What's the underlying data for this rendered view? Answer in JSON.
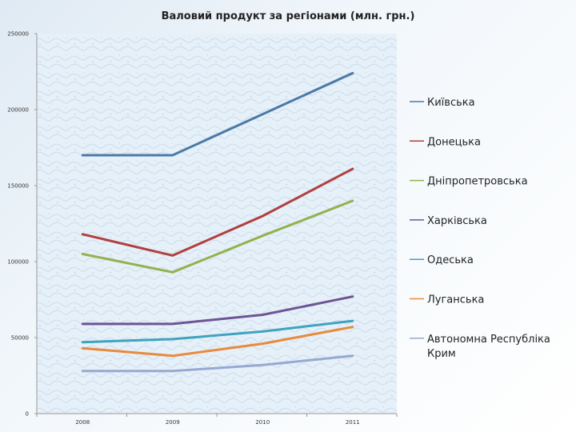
{
  "chart_data": {
    "type": "line",
    "title": "Валовий продукт за регіонами (млн. грн.)",
    "xlabel": "",
    "ylabel": "",
    "categories": [
      "2008",
      "2009",
      "2010",
      "2011"
    ],
    "ylim": [
      0,
      250000
    ],
    "yticks": [
      "0",
      "50000",
      "100000",
      "150000",
      "200000",
      "250000"
    ],
    "grid": false,
    "legend_position": "right",
    "series": [
      {
        "name": "Київська",
        "color": "#4a7aa6",
        "values": [
          170000,
          170000,
          197000,
          224000
        ]
      },
      {
        "name": "Донецька",
        "color": "#b0403f",
        "values": [
          118000,
          104000,
          130000,
          161000
        ]
      },
      {
        "name": "Дніпропетровська",
        "color": "#92b24e",
        "values": [
          105000,
          93000,
          117000,
          140000
        ]
      },
      {
        "name": "Харківська",
        "color": "#6e5496",
        "values": [
          59000,
          59000,
          65000,
          77000
        ]
      },
      {
        "name": "Одеська",
        "color": "#3fa3bf",
        "values": [
          47000,
          49000,
          54000,
          61000
        ]
      },
      {
        "name": "Луганська",
        "color": "#e88a3c",
        "values": [
          43000,
          38000,
          46000,
          57000
        ]
      },
      {
        "name": "Автономна Республіка Крим",
        "color": "#96a9d2",
        "values": [
          28000,
          28000,
          32000,
          38000
        ]
      }
    ]
  }
}
